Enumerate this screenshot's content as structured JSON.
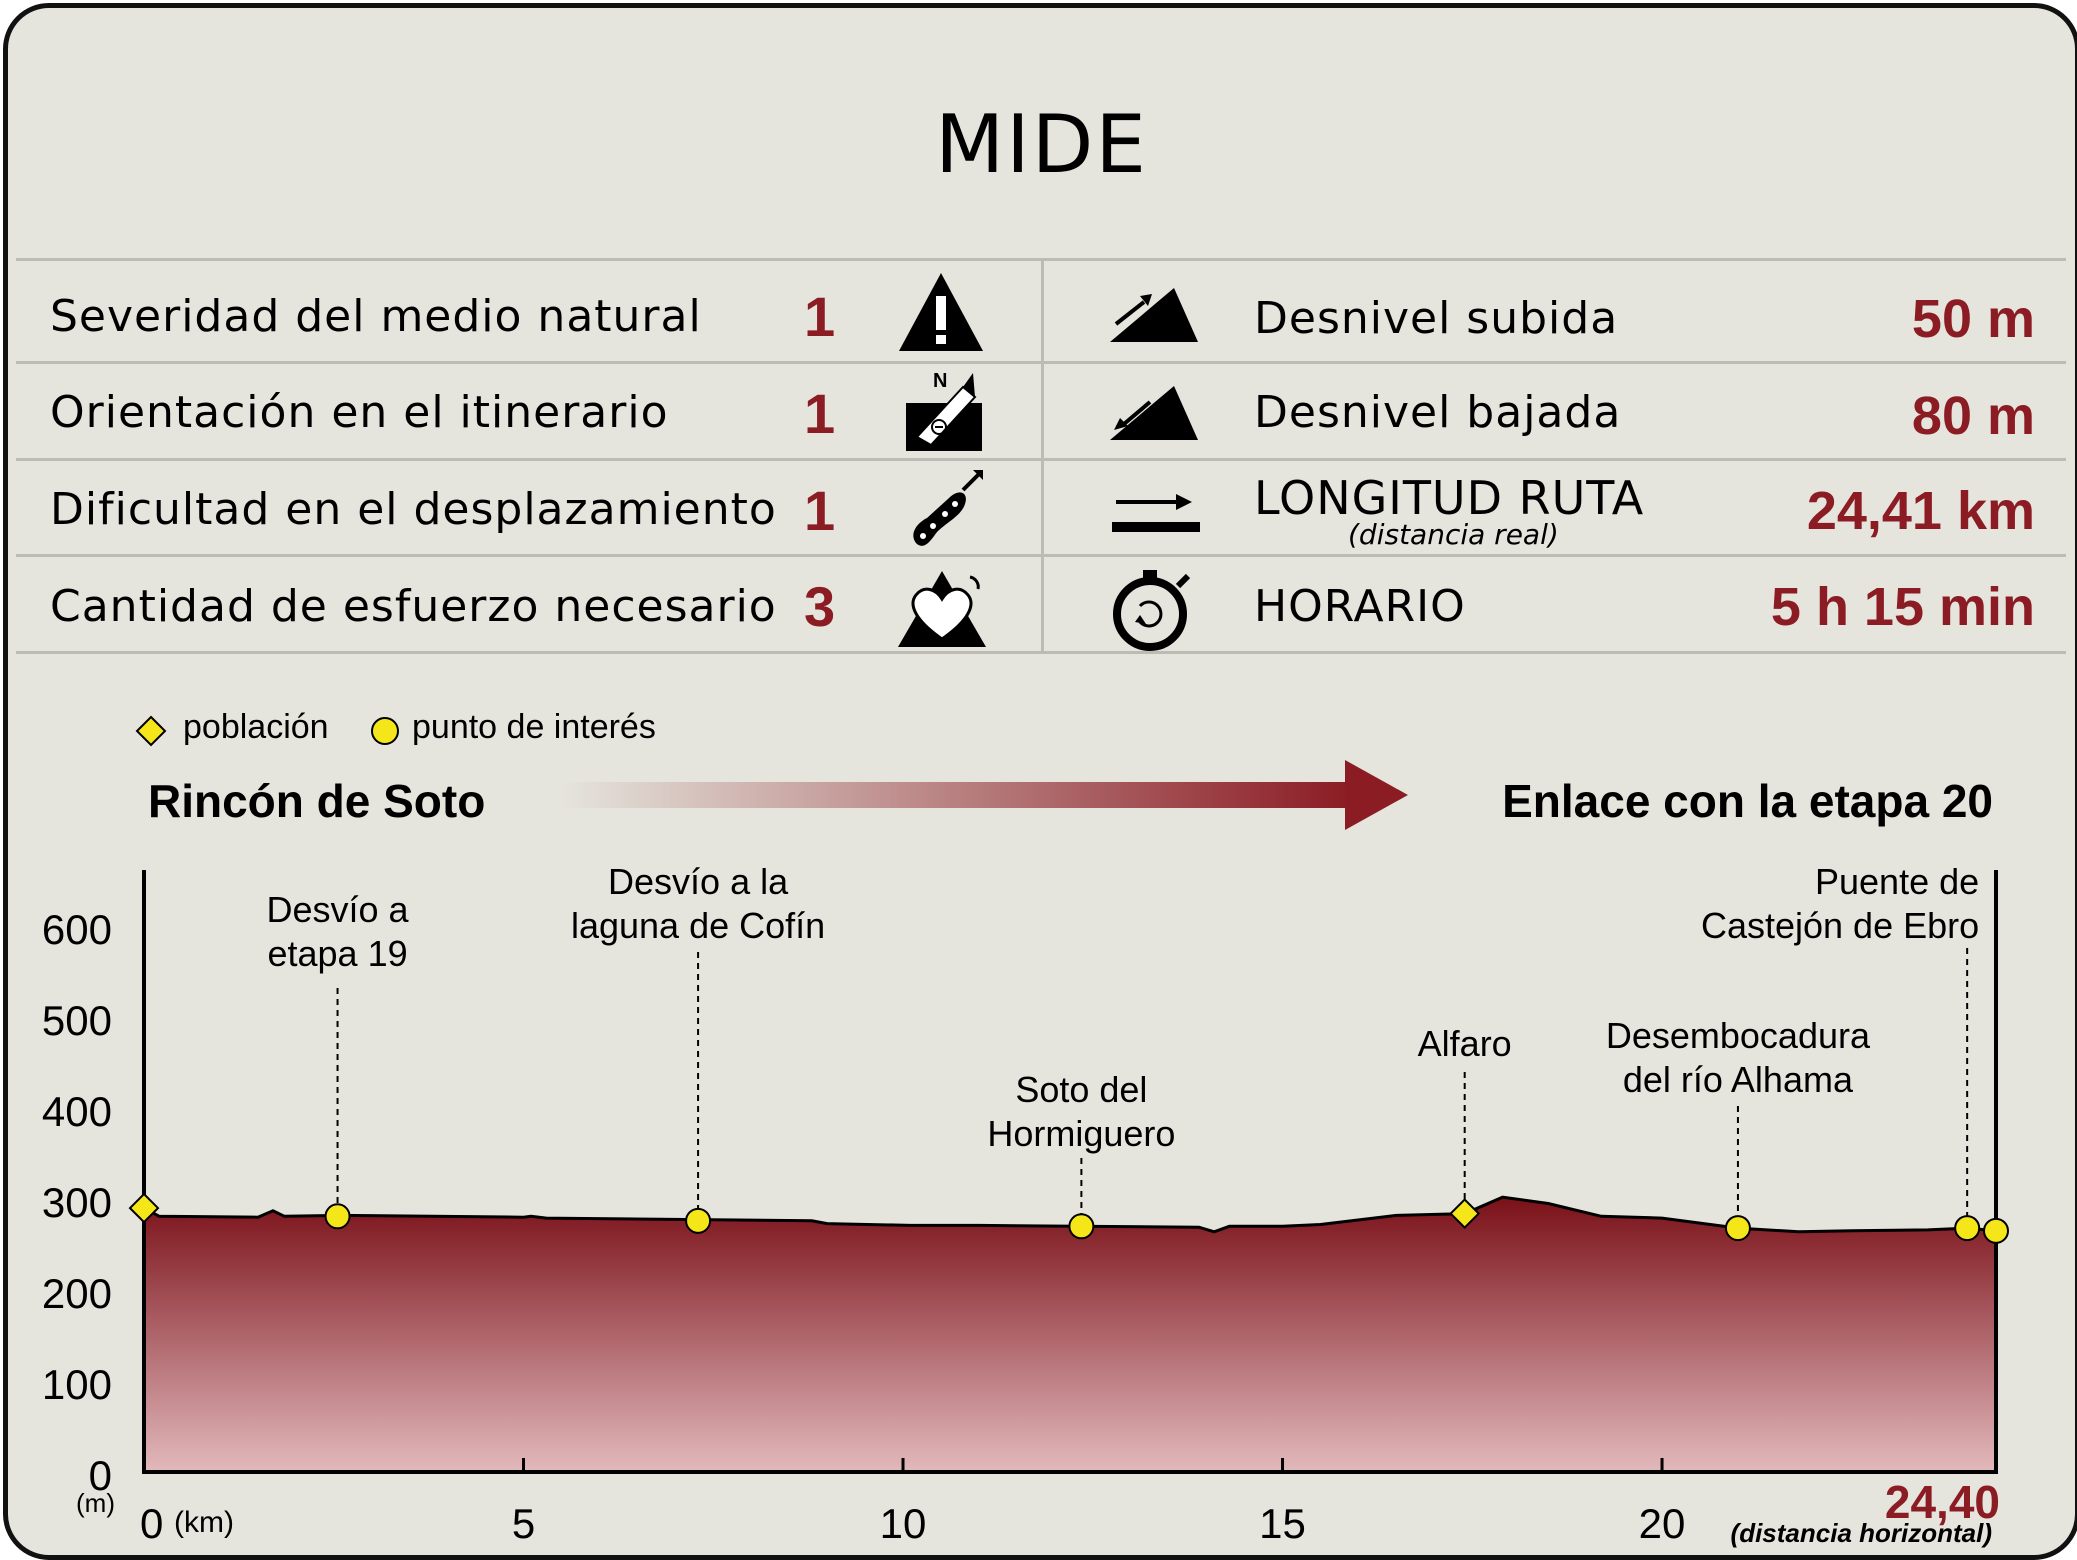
{
  "title": "MIDE",
  "mide": [
    {
      "label": "Severidad del medio natural",
      "value": "1",
      "icon": "warning-triangle-icon"
    },
    {
      "label": "Orientación en el itinerario",
      "value": "1",
      "icon": "compass-map-icon"
    },
    {
      "label": "Dificultad en el desplazamiento",
      "value": "1",
      "icon": "footprint-icon"
    },
    {
      "label": "Cantidad de esfuerzo necesario",
      "value": "3",
      "icon": "heart-mountain-icon"
    }
  ],
  "stats": [
    {
      "label": "Desnivel subida",
      "value": "50 m",
      "icon": "ascent-slope-icon"
    },
    {
      "label": "Desnivel bajada",
      "value": "80 m",
      "icon": "descent-slope-icon"
    },
    {
      "label": "LONGITUD RUTA",
      "sublabel": "(distancia real)",
      "value": "24,41 km",
      "icon": "distance-arrow-icon"
    },
    {
      "label": "HORARIO",
      "value": "5 h 15 min",
      "icon": "stopwatch-icon"
    }
  ],
  "legend": {
    "town": "población",
    "poi": "punto de interés"
  },
  "route": {
    "start": "Rincón de Soto",
    "end": "Enlace con la etapa 20"
  },
  "colors": {
    "accent": "#8b1c24",
    "marker": "#f5e61a",
    "panel": "#e5e5dd"
  },
  "chart_data": {
    "type": "area",
    "ylabel": "(m)",
    "xlabel": "(km)",
    "x_note": "(distancia horizontal)",
    "end_label": "24,40",
    "xlim": [
      0,
      24.4
    ],
    "ylim": [
      0,
      650
    ],
    "yticks": [
      "0",
      "100",
      "200",
      "300",
      "400",
      "500",
      "600"
    ],
    "xticks": [
      "0",
      "5",
      "10",
      "15",
      "20"
    ],
    "profile_x": [
      0,
      0.2,
      1.5,
      1.7,
      1.85,
      2.6,
      5.0,
      5.1,
      5.3,
      8.8,
      9.0,
      10.1,
      11.0,
      12.3,
      13.9,
      14.1,
      14.3,
      15.0,
      15.5,
      16.5,
      17.4,
      17.9,
      18.5,
      19.2,
      20.0,
      21.0,
      21.8,
      22.5,
      23.5,
      24.02,
      24.4
    ],
    "profile_y": [
      290,
      281,
      280,
      287,
      281,
      282,
      280,
      281,
      279,
      276,
      273,
      271,
      271,
      270,
      269,
      264,
      270,
      270,
      272,
      282,
      284,
      302,
      295,
      281,
      279,
      268,
      264,
      265,
      266,
      268,
      265
    ],
    "markers": [
      {
        "type": "town",
        "km": 0,
        "alt": 290,
        "label": ""
      },
      {
        "type": "poi",
        "km": 2.55,
        "alt": 281,
        "label": "Desvío a\netapa 19"
      },
      {
        "type": "poi",
        "km": 7.3,
        "alt": 276,
        "label": "Desvío a la\nlaguna de Cofín"
      },
      {
        "type": "poi",
        "km": 12.35,
        "alt": 270,
        "label": "Soto del\nHormiguero"
      },
      {
        "type": "town",
        "km": 17.4,
        "alt": 284,
        "label": "Alfaro"
      },
      {
        "type": "poi",
        "km": 21.0,
        "alt": 268,
        "label": "Desembocadura\ndel río Alhama"
      },
      {
        "type": "poi",
        "km": 24.02,
        "alt": 268,
        "label": "Puente de\nCastejón de Ebro"
      },
      {
        "type": "poi",
        "km": 24.4,
        "alt": 265,
        "label": ""
      }
    ]
  }
}
